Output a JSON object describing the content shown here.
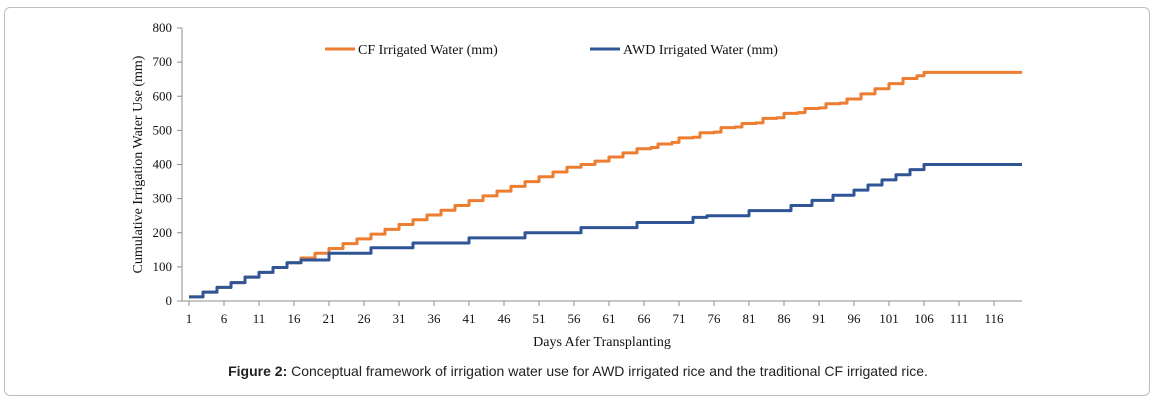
{
  "chart_data": {
    "type": "line",
    "xlabel": "Days Afer Transplanting",
    "ylabel": "Cumulative Irrigation Water Use (mm)",
    "ylim": [
      0,
      800
    ],
    "yticks": [
      0,
      100,
      200,
      300,
      400,
      500,
      600,
      700,
      800
    ],
    "xlim": [
      1,
      120
    ],
    "xticks": [
      1,
      6,
      11,
      16,
      21,
      26,
      31,
      36,
      41,
      46,
      51,
      56,
      61,
      66,
      71,
      76,
      81,
      86,
      91,
      96,
      101,
      106,
      111,
      116
    ],
    "grid": false,
    "legend": "top",
    "series": [
      {
        "name": "CF Irrigated Water (mm)",
        "color": "#ED7D31",
        "points": [
          [
            1,
            12
          ],
          [
            2,
            12
          ],
          [
            3,
            26
          ],
          [
            4,
            26
          ],
          [
            5,
            40
          ],
          [
            6,
            40
          ],
          [
            7,
            54
          ],
          [
            8,
            54
          ],
          [
            9,
            70
          ],
          [
            10,
            70
          ],
          [
            11,
            84
          ],
          [
            12,
            84
          ],
          [
            13,
            98
          ],
          [
            14,
            98
          ],
          [
            15,
            112
          ],
          [
            16,
            112
          ],
          [
            17,
            126
          ],
          [
            18,
            126
          ],
          [
            19,
            140
          ],
          [
            20,
            140
          ],
          [
            21,
            154
          ],
          [
            22,
            154
          ],
          [
            23,
            168
          ],
          [
            24,
            168
          ],
          [
            25,
            182
          ],
          [
            26,
            182
          ],
          [
            27,
            196
          ],
          [
            28,
            196
          ],
          [
            29,
            210
          ],
          [
            30,
            210
          ],
          [
            31,
            224
          ],
          [
            32,
            224
          ],
          [
            33,
            238
          ],
          [
            34,
            238
          ],
          [
            35,
            252
          ],
          [
            36,
            252
          ],
          [
            37,
            266
          ],
          [
            38,
            266
          ],
          [
            39,
            280
          ],
          [
            40,
            280
          ],
          [
            41,
            294
          ],
          [
            42,
            294
          ],
          [
            43,
            308
          ],
          [
            44,
            308
          ],
          [
            45,
            322
          ],
          [
            46,
            322
          ],
          [
            47,
            336
          ],
          [
            48,
            336
          ],
          [
            49,
            350
          ],
          [
            50,
            350
          ],
          [
            51,
            364
          ],
          [
            52,
            364
          ],
          [
            53,
            378
          ],
          [
            54,
            378
          ],
          [
            55,
            392
          ],
          [
            56,
            392
          ],
          [
            57,
            400
          ],
          [
            58,
            400
          ],
          [
            59,
            410
          ],
          [
            60,
            410
          ],
          [
            61,
            422
          ],
          [
            62,
            422
          ],
          [
            63,
            434
          ],
          [
            64,
            434
          ],
          [
            65,
            446
          ],
          [
            66,
            446
          ],
          [
            67,
            450
          ],
          [
            68,
            460
          ],
          [
            69,
            460
          ],
          [
            70,
            465
          ],
          [
            71,
            478
          ],
          [
            72,
            478
          ],
          [
            73,
            480
          ],
          [
            74,
            493
          ],
          [
            75,
            493
          ],
          [
            76,
            495
          ],
          [
            77,
            508
          ],
          [
            78,
            508
          ],
          [
            79,
            510
          ],
          [
            80,
            520
          ],
          [
            81,
            520
          ],
          [
            82,
            522
          ],
          [
            83,
            535
          ],
          [
            84,
            535
          ],
          [
            85,
            537
          ],
          [
            86,
            550
          ],
          [
            87,
            550
          ],
          [
            88,
            552
          ],
          [
            89,
            564
          ],
          [
            90,
            564
          ],
          [
            91,
            566
          ],
          [
            92,
            578
          ],
          [
            93,
            578
          ],
          [
            94,
            580
          ],
          [
            95,
            592
          ],
          [
            96,
            592
          ],
          [
            97,
            607
          ],
          [
            98,
            607
          ],
          [
            99,
            622
          ],
          [
            100,
            622
          ],
          [
            101,
            637
          ],
          [
            102,
            637
          ],
          [
            103,
            652
          ],
          [
            104,
            652
          ],
          [
            105,
            660
          ],
          [
            106,
            670
          ],
          [
            107,
            670
          ],
          [
            108,
            670
          ],
          [
            109,
            670
          ],
          [
            110,
            670
          ],
          [
            111,
            670
          ],
          [
            112,
            670
          ],
          [
            113,
            670
          ],
          [
            114,
            670
          ],
          [
            115,
            670
          ],
          [
            116,
            670
          ],
          [
            117,
            670
          ],
          [
            118,
            670
          ],
          [
            119,
            670
          ],
          [
            120,
            670
          ]
        ]
      },
      {
        "name": "AWD Irrigated Water (mm)",
        "color": "#2F5597",
        "points": [
          [
            1,
            12
          ],
          [
            2,
            12
          ],
          [
            3,
            26
          ],
          [
            4,
            26
          ],
          [
            5,
            40
          ],
          [
            6,
            40
          ],
          [
            7,
            54
          ],
          [
            8,
            54
          ],
          [
            9,
            70
          ],
          [
            10,
            70
          ],
          [
            11,
            84
          ],
          [
            12,
            84
          ],
          [
            13,
            98
          ],
          [
            14,
            98
          ],
          [
            15,
            112
          ],
          [
            16,
            112
          ],
          [
            17,
            120
          ],
          [
            18,
            120
          ],
          [
            19,
            120
          ],
          [
            20,
            120
          ],
          [
            21,
            140
          ],
          [
            22,
            140
          ],
          [
            23,
            140
          ],
          [
            24,
            140
          ],
          [
            25,
            140
          ],
          [
            26,
            140
          ],
          [
            27,
            156
          ],
          [
            28,
            156
          ],
          [
            29,
            156
          ],
          [
            30,
            156
          ],
          [
            31,
            156
          ],
          [
            32,
            156
          ],
          [
            33,
            170
          ],
          [
            34,
            170
          ],
          [
            35,
            170
          ],
          [
            36,
            170
          ],
          [
            37,
            170
          ],
          [
            38,
            170
          ],
          [
            39,
            170
          ],
          [
            40,
            170
          ],
          [
            41,
            185
          ],
          [
            42,
            185
          ],
          [
            43,
            185
          ],
          [
            44,
            185
          ],
          [
            45,
            185
          ],
          [
            46,
            185
          ],
          [
            47,
            185
          ],
          [
            48,
            185
          ],
          [
            49,
            200
          ],
          [
            50,
            200
          ],
          [
            51,
            200
          ],
          [
            52,
            200
          ],
          [
            53,
            200
          ],
          [
            54,
            200
          ],
          [
            55,
            200
          ],
          [
            56,
            200
          ],
          [
            57,
            215
          ],
          [
            58,
            215
          ],
          [
            59,
            215
          ],
          [
            60,
            215
          ],
          [
            61,
            215
          ],
          [
            62,
            215
          ],
          [
            63,
            215
          ],
          [
            64,
            215
          ],
          [
            65,
            230
          ],
          [
            66,
            230
          ],
          [
            67,
            230
          ],
          [
            68,
            230
          ],
          [
            69,
            230
          ],
          [
            70,
            230
          ],
          [
            71,
            230
          ],
          [
            72,
            230
          ],
          [
            73,
            245
          ],
          [
            74,
            245
          ],
          [
            75,
            250
          ],
          [
            76,
            250
          ],
          [
            77,
            250
          ],
          [
            78,
            250
          ],
          [
            79,
            250
          ],
          [
            80,
            250
          ],
          [
            81,
            265
          ],
          [
            82,
            265
          ],
          [
            83,
            265
          ],
          [
            84,
            265
          ],
          [
            85,
            265
          ],
          [
            86,
            265
          ],
          [
            87,
            280
          ],
          [
            88,
            280
          ],
          [
            89,
            280
          ],
          [
            90,
            295
          ],
          [
            91,
            295
          ],
          [
            92,
            295
          ],
          [
            93,
            310
          ],
          [
            94,
            310
          ],
          [
            95,
            310
          ],
          [
            96,
            325
          ],
          [
            97,
            325
          ],
          [
            98,
            340
          ],
          [
            99,
            340
          ],
          [
            100,
            355
          ],
          [
            101,
            355
          ],
          [
            102,
            370
          ],
          [
            103,
            370
          ],
          [
            104,
            385
          ],
          [
            105,
            385
          ],
          [
            106,
            400
          ],
          [
            107,
            400
          ],
          [
            108,
            400
          ],
          [
            109,
            400
          ],
          [
            110,
            400
          ],
          [
            111,
            400
          ],
          [
            112,
            400
          ],
          [
            113,
            400
          ],
          [
            114,
            400
          ],
          [
            115,
            400
          ],
          [
            116,
            400
          ],
          [
            117,
            400
          ],
          [
            118,
            400
          ],
          [
            119,
            400
          ],
          [
            120,
            400
          ]
        ]
      }
    ]
  },
  "caption": {
    "label": "Figure 2:",
    "text": " Conceptual framework of irrigation water use for AWD irrigated rice and the traditional CF irrigated rice."
  }
}
